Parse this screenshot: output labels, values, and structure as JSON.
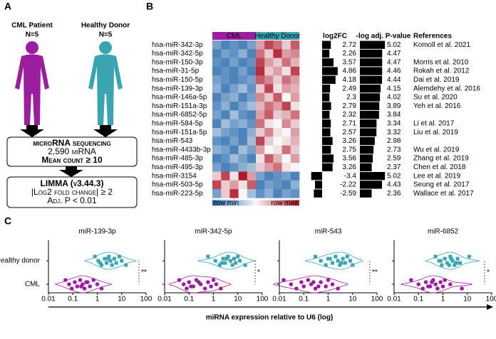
{
  "panel_a": {
    "letter": "A",
    "groups": [
      {
        "name": "CML Patient",
        "n": "N=5",
        "color": "#9b1e9e"
      },
      {
        "name": "Healthy Donor",
        "n": "N=5",
        "color": "#3aa5b0"
      }
    ],
    "steps": [
      [
        "microRNA sequencing",
        "2,590 miRNA",
        "Mean count ≥ 10"
      ],
      [
        "LIMMA (v3.44.3)",
        "|Log2 fold change| ≥ 2",
        "Adj. P < 0.01"
      ]
    ]
  },
  "panel_b": {
    "letter": "B",
    "group_labels": [
      "CML",
      "Healthy Donor"
    ],
    "group_colors": [
      "#9b1e9e",
      "#3aa5b0"
    ],
    "legend": [
      "row min",
      "row max"
    ],
    "colormap": [
      "#2166ac",
      "#f7f7f7",
      "#b2182b"
    ],
    "headers": [
      "log2FC",
      "-log adj. P-value",
      "References"
    ],
    "rows": [
      {
        "name": "hsa-miR-342-3p",
        "color": "#000000",
        "log2fc": 2.72,
        "neg_log_p": 5.02,
        "reference": "Komoll et al. 2021",
        "values": [
          0.2,
          0.1,
          0.15,
          0.1,
          0.2,
          0.7,
          0.9,
          0.8,
          0.6,
          0.85
        ]
      },
      {
        "name": "hsa-miR-342-5p",
        "color": "#e0302a",
        "log2fc": 2.26,
        "neg_log_p": 4.47,
        "reference": null,
        "values": [
          0.1,
          0.2,
          0.15,
          0.25,
          0.1,
          0.8,
          0.6,
          0.95,
          0.7,
          0.75
        ]
      },
      {
        "name": "hsa-miR-150-3p",
        "color": "#000000",
        "log2fc": 3.57,
        "neg_log_p": 4.47,
        "reference": "Morris et al. 2010",
        "values": [
          0.15,
          0.1,
          0.2,
          0.1,
          0.15,
          0.9,
          0.7,
          0.6,
          0.8,
          0.65
        ]
      },
      {
        "name": "hsa-miR-31-5p",
        "color": "#000000",
        "log2fc": 4.86,
        "neg_log_p": 4.46,
        "reference": "Rokah et al. 2012",
        "values": [
          0.1,
          0.15,
          0.1,
          0.2,
          0.1,
          0.95,
          0.6,
          0.7,
          0.55,
          0.9
        ]
      },
      {
        "name": "hsa-miR-150-5p",
        "color": "#000000",
        "log2fc": 4.18,
        "neg_log_p": 4.44,
        "reference": "Dai et al. 2019",
        "values": [
          0.2,
          0.15,
          0.1,
          0.15,
          0.2,
          0.85,
          0.75,
          0.6,
          0.8,
          0.7
        ]
      },
      {
        "name": "hsa-miR-139-3p",
        "color": "#1a9e3a",
        "log2fc": 2.49,
        "neg_log_p": 4.15,
        "reference": "Alemdehy et al. 2016",
        "values": [
          0.25,
          0.1,
          0.2,
          0.3,
          0.15,
          0.6,
          0.9,
          0.55,
          0.7,
          0.65
        ]
      },
      {
        "name": "hsa-miR-146a-5p",
        "color": "#000000",
        "log2fc": 2.3,
        "neg_log_p": 4.02,
        "reference": "Su et al. 2020",
        "values": [
          0.1,
          0.2,
          0.25,
          0.1,
          0.2,
          0.75,
          0.6,
          0.85,
          0.5,
          0.7
        ]
      },
      {
        "name": "hsa-miR-151a-3p",
        "color": "#000000",
        "log2fc": 2.79,
        "neg_log_p": 3.89,
        "reference": "Yeh et al. 2016",
        "values": [
          0.15,
          0.25,
          0.1,
          0.2,
          0.3,
          0.65,
          0.8,
          0.7,
          0.9,
          0.55
        ]
      },
      {
        "name": "hsa-miR-6852-5p",
        "color": "#e0302a",
        "log2fc": 2.32,
        "neg_log_p": 3.84,
        "reference": null,
        "values": [
          0.2,
          0.1,
          0.3,
          0.15,
          0.1,
          0.7,
          0.85,
          0.6,
          0.65,
          0.8
        ]
      },
      {
        "name": "hsa-miR-584-5p",
        "color": "#000000",
        "log2fc": 2.71,
        "neg_log_p": 3.34,
        "reference": "Li et al. 2017",
        "values": [
          0.1,
          0.3,
          0.2,
          0.25,
          0.15,
          0.8,
          0.55,
          0.5,
          0.75,
          0.6
        ]
      },
      {
        "name": "hsa-miR-151a-5p",
        "color": "#000000",
        "log2fc": 2.57,
        "neg_log_p": 3.32,
        "reference": "Liu et al. 2019",
        "values": [
          0.3,
          0.2,
          0.15,
          0.1,
          0.25,
          0.6,
          0.75,
          0.55,
          0.5,
          0.7
        ]
      },
      {
        "name": "hsa-miR-543",
        "color": "#e0302a",
        "log2fc": 3.26,
        "neg_log_p": 2.98,
        "reference": null,
        "values": [
          0.15,
          0.1,
          0.2,
          0.1,
          0.3,
          0.9,
          0.6,
          0.5,
          0.55,
          0.65
        ]
      },
      {
        "name": "hsa-miR-4433b-3p",
        "color": "#000000",
        "log2fc": 2.75,
        "neg_log_p": 2.73,
        "reference": "Wu et al. 2019",
        "values": [
          0.25,
          0.2,
          0.1,
          0.3,
          0.2,
          0.7,
          0.5,
          0.55,
          0.8,
          0.6
        ]
      },
      {
        "name": "hsa-miR-485-3p",
        "color": "#000000",
        "log2fc": 3.56,
        "neg_log_p": 2.59,
        "reference": "Zhang et al. 2019",
        "values": [
          0.1,
          0.15,
          0.3,
          0.2,
          0.1,
          0.55,
          0.85,
          0.65,
          0.5,
          0.7
        ]
      },
      {
        "name": "hsa-miR-495-3p",
        "color": "#000000",
        "log2fc": 3.26,
        "neg_log_p": 2.37,
        "reference": "Chen et al. 2018",
        "values": [
          0.2,
          0.1,
          0.15,
          0.25,
          0.3,
          0.6,
          0.7,
          0.8,
          0.55,
          0.5
        ]
      },
      {
        "name": "hsa-miR-3154",
        "color": "#000000",
        "log2fc": -3.4,
        "neg_log_p": 5.02,
        "reference": "Lee et al. 2019",
        "values": [
          0.6,
          0.9,
          0.55,
          1,
          0.7,
          0.2,
          0.1,
          0.15,
          0.2,
          0.1
        ]
      },
      {
        "name": "hsa-miR-503-5p",
        "color": "#000000",
        "log2fc": -2.22,
        "neg_log_p": 4.43,
        "reference": "Seung et al. 2017",
        "values": [
          0.9,
          0.6,
          0.7,
          0.55,
          0.85,
          0.1,
          0.2,
          0.15,
          0.1,
          0.25
        ]
      },
      {
        "name": "hsa-miR-223-5p",
        "color": "#000000",
        "log2fc": -2.59,
        "neg_log_p": 2.36,
        "reference": "Wallace et al. 2017",
        "values": [
          0.2,
          0.6,
          0.95,
          0.5,
          0.3,
          0.15,
          0.25,
          0.1,
          0.2,
          0.15
        ]
      }
    ]
  },
  "panel_c": {
    "letter": "C",
    "x_label": "miRNA expression relative to U6 (log)",
    "groups": [
      {
        "name": "Healthy donor",
        "color": "#3aa5b0"
      },
      {
        "name": "CML",
        "color": "#9b1e9e"
      }
    ]
  },
  "chart_data": [
    {
      "type": "violin",
      "title": "miR-139-3p",
      "log_scale": true,
      "xlim": [
        0.01,
        100
      ],
      "xticks": [
        0.01,
        0.1,
        1,
        10,
        100
      ],
      "significance": "**",
      "values": [
        [
          0.8,
          1.1,
          1.5,
          2,
          2.4,
          3,
          3.5,
          4,
          5,
          6,
          8,
          10,
          15,
          2.8,
          1.3
        ],
        [
          0.05,
          0.07,
          0.09,
          0.12,
          0.15,
          0.2,
          0.25,
          0.3,
          0.4,
          0.5,
          0.7,
          1,
          1.5,
          0.35,
          0.22
        ]
      ]
    },
    {
      "type": "violin",
      "title": "miR-342-5p",
      "log_scale": true,
      "xlim": [
        0.01,
        100
      ],
      "xticks": [
        0.01,
        0.1,
        1,
        10,
        100
      ],
      "significance": "*",
      "values": [
        [
          0.6,
          1.2,
          1.8,
          2.5,
          3,
          4,
          5,
          6,
          7,
          8,
          10,
          12,
          20,
          3.5,
          2.2
        ],
        [
          0.04,
          0.06,
          0.08,
          0.1,
          0.15,
          0.2,
          0.3,
          0.45,
          0.6,
          0.8,
          1,
          1.3,
          2,
          0.25,
          0.12
        ]
      ]
    },
    {
      "type": "violin",
      "title": "miR-543",
      "log_scale": true,
      "xlim": [
        0.01,
        100
      ],
      "xticks": [
        0.01,
        0.1,
        1,
        10,
        100
      ],
      "significance": "**",
      "values": [
        [
          0.3,
          0.5,
          0.8,
          1,
          1.5,
          2,
          2.5,
          3,
          4,
          5,
          6,
          8,
          10,
          1.2,
          3.5
        ],
        [
          0.015,
          0.03,
          0.05,
          0.08,
          0.1,
          0.15,
          0.2,
          0.3,
          0.5,
          0.8,
          1,
          1.5,
          2.5,
          0.25,
          0.4
        ]
      ]
    },
    {
      "type": "violin",
      "title": "miR-6852",
      "log_scale": true,
      "xlim": [
        0.01,
        100
      ],
      "xticks": [
        0.01,
        0.1,
        1,
        10,
        100
      ],
      "significance": "*",
      "values": [
        [
          0.5,
          0.7,
          0.9,
          1.2,
          1.5,
          2,
          2.5,
          3,
          4,
          5,
          12,
          0.8,
          1.8,
          2.2,
          3.5
        ],
        [
          0.05,
          0.1,
          0.15,
          0.2,
          0.3,
          0.4,
          0.5,
          0.6,
          0.8,
          1,
          1.2,
          2,
          6,
          0.35,
          0.25
        ]
      ]
    }
  ]
}
